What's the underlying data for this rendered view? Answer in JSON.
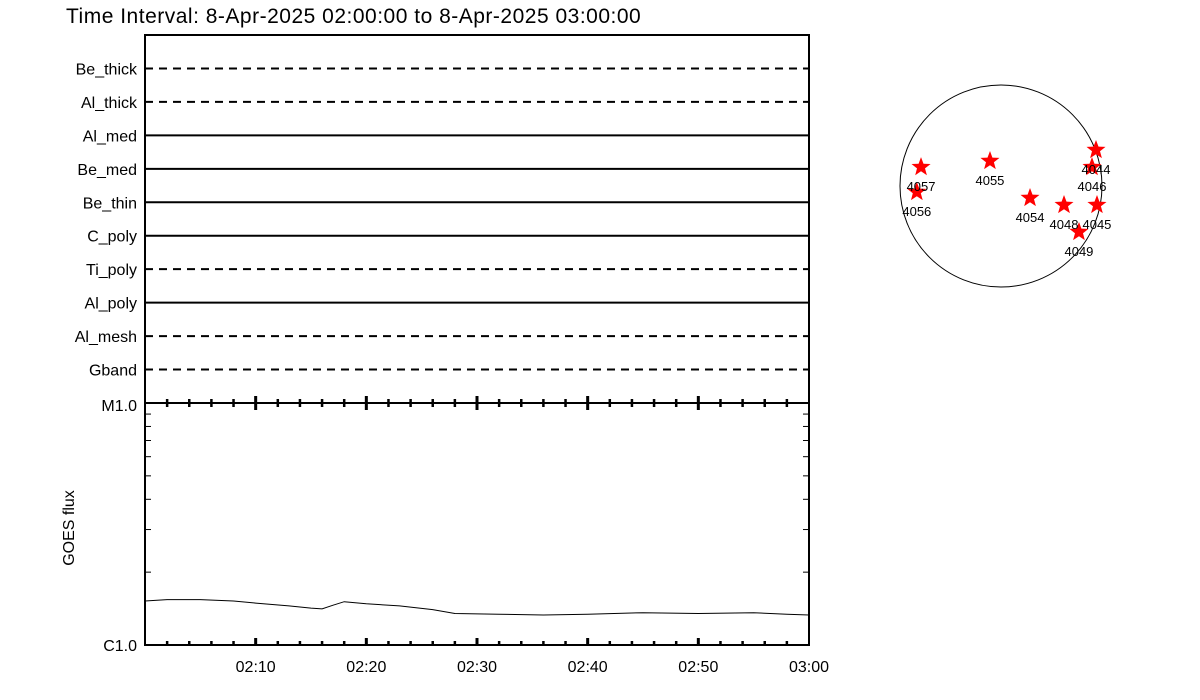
{
  "chart_data": [
    {
      "type": "table",
      "title": "Time Interval:  8-Apr-2025 02:00:00 to  8-Apr-2025 03:00:00",
      "filters": [
        {
          "name": "Be_thick",
          "style": "dashed"
        },
        {
          "name": "Al_thick",
          "style": "dashed"
        },
        {
          "name": "Al_med",
          "style": "solid"
        },
        {
          "name": "Be_med",
          "style": "solid"
        },
        {
          "name": "Be_thin",
          "style": "solid"
        },
        {
          "name": "C_poly",
          "style": "solid"
        },
        {
          "name": "Ti_poly",
          "style": "dashed"
        },
        {
          "name": "Al_poly",
          "style": "solid"
        },
        {
          "name": "Al_mesh",
          "style": "dashed"
        },
        {
          "name": "Gband",
          "style": "dashed"
        }
      ]
    },
    {
      "type": "line",
      "ylabel": "GOES flux",
      "yscale": "log",
      "ylim": [
        1e-06,
        1e-05
      ],
      "ytick_labels": [
        "C1.0",
        "M1.0"
      ],
      "xlim": [
        "02:00",
        "03:00"
      ],
      "xtick_labels": [
        "02:10",
        "02:20",
        "02:30",
        "02:40",
        "02:50",
        "03:00"
      ],
      "x_minutes": [
        0,
        2,
        5,
        8,
        10,
        13,
        15,
        16,
        17,
        18,
        20,
        23,
        26,
        28,
        32,
        36,
        40,
        45,
        50,
        55,
        58,
        60
      ],
      "y": [
        1.52e-06,
        1.54e-06,
        1.54e-06,
        1.52e-06,
        1.49e-06,
        1.45e-06,
        1.42e-06,
        1.41e-06,
        1.46e-06,
        1.51e-06,
        1.48e-06,
        1.45e-06,
        1.4e-06,
        1.35e-06,
        1.34e-06,
        1.33e-06,
        1.34e-06,
        1.36e-06,
        1.35e-06,
        1.36e-06,
        1.34e-06,
        1.33e-06
      ]
    },
    {
      "type": "scatter",
      "marker": "star",
      "marker_color": "#ff0000",
      "solar_radius_arcsec": 960,
      "regions": [
        {
          "label": "4057",
          "x": -760,
          "y": 180
        },
        {
          "label": "4056",
          "x": -800,
          "y": -57
        },
        {
          "label": "4055",
          "x": -105,
          "y": 238
        },
        {
          "label": "4054",
          "x": 276,
          "y": -114
        },
        {
          "label": "4048",
          "x": 599,
          "y": -181
        },
        {
          "label": "4045",
          "x": 912,
          "y": -181
        },
        {
          "label": "4049",
          "x": 741,
          "y": -437
        },
        {
          "label": "4044",
          "x": 903,
          "y": 342
        },
        {
          "label": "4046",
          "x": 865,
          "y": 180
        }
      ]
    }
  ]
}
